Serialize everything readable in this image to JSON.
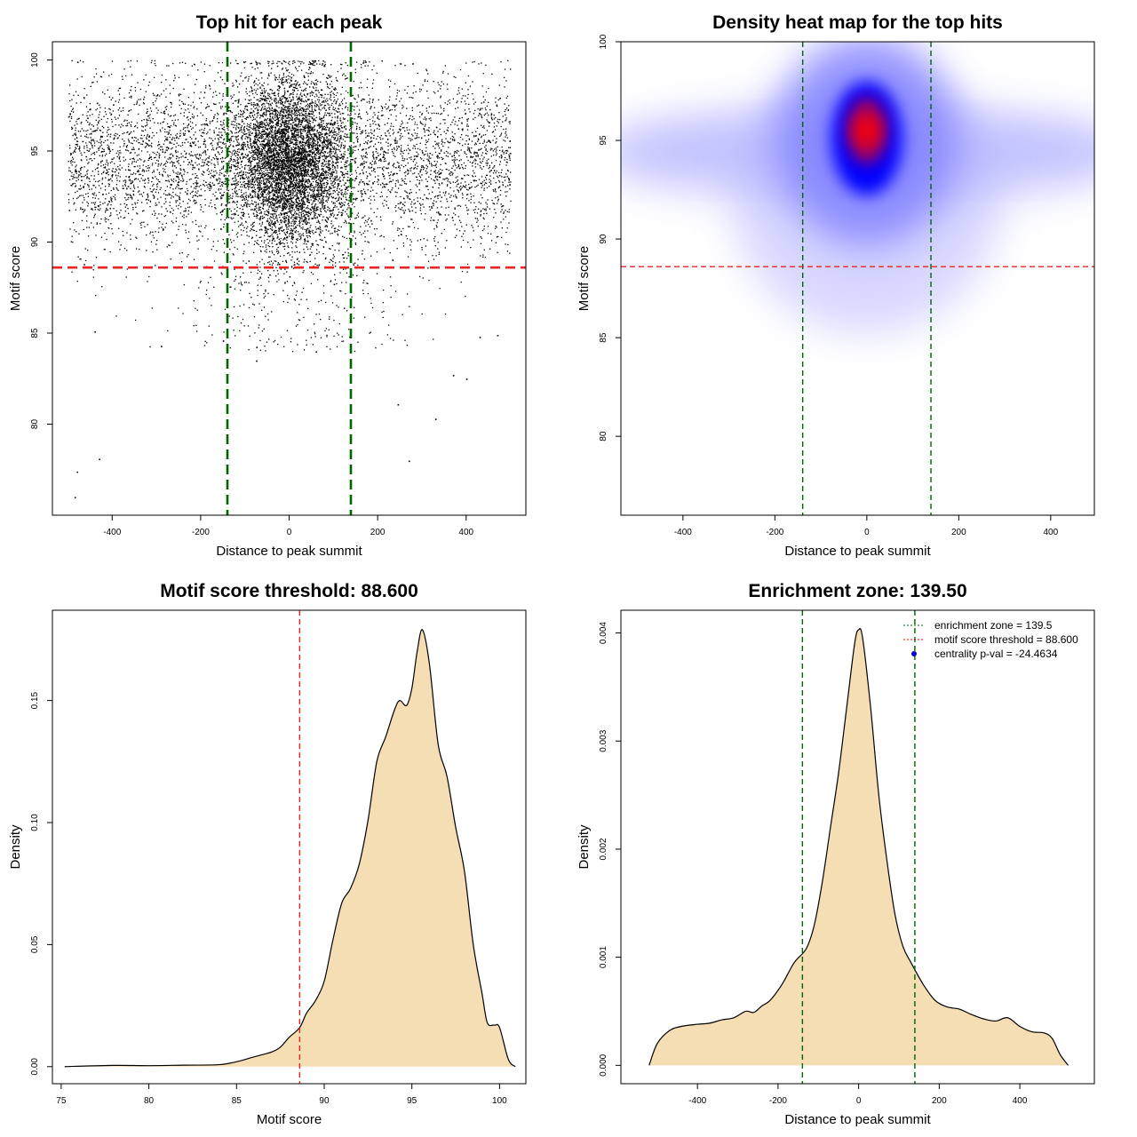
{
  "chart_data": [
    {
      "type": "scatter",
      "title": "Top hit for each peak",
      "xlabel": "Distance to peak summit",
      "ylabel": "Motif score",
      "xlim": [
        -535,
        535
      ],
      "ylim": [
        75,
        101
      ],
      "xticks": [
        -400,
        -200,
        0,
        200,
        400
      ],
      "yticks": [
        80,
        85,
        90,
        95,
        100
      ],
      "enrichment_zone": [
        -139.5,
        139.5
      ],
      "motif_threshold": 88.6,
      "distribution": {
        "description": "dense cloud of top hits centered on peak summit",
        "center_x": 0,
        "center_y": 94.5,
        "x_range": [
          -500,
          500
        ],
        "score_range": [
          75.5,
          100
        ]
      },
      "outliers": [
        {
          "x": -485,
          "y": 76.0
        },
        {
          "x": -480,
          "y": 77.4
        },
        {
          "x": -430,
          "y": 78.1
        },
        {
          "x": 270,
          "y": 78.0
        },
        {
          "x": 330,
          "y": 80.3
        },
        {
          "x": 245,
          "y": 81.1
        },
        {
          "x": 370,
          "y": 82.7
        },
        {
          "x": 400,
          "y": 82.5
        },
        {
          "x": -75,
          "y": 83.5
        },
        {
          "x": -290,
          "y": 84.3
        },
        {
          "x": 430,
          "y": 84.8
        },
        {
          "x": 470,
          "y": 84.9
        },
        {
          "x": -440,
          "y": 85.1
        },
        {
          "x": 60,
          "y": 84.0
        },
        {
          "x": -150,
          "y": 84.6
        }
      ]
    },
    {
      "type": "heatmap",
      "title": "Density heat map for the top hits",
      "xlabel": "Distance to peak summit",
      "ylabel": "Motif score",
      "xlim": [
        -535,
        495
      ],
      "ylim": [
        76,
        100
      ],
      "xticks": [
        -400,
        -200,
        0,
        200,
        400
      ],
      "yticks": [
        80,
        85,
        90,
        95,
        100
      ],
      "enrichment_zone": [
        -139.5,
        139.5
      ],
      "motif_threshold": 88.6,
      "peak_density": {
        "x": 0,
        "y": 95.5
      },
      "colors": [
        "#ffffff",
        "#0000ff",
        "#ff0000"
      ]
    },
    {
      "type": "area",
      "title": "Motif score threshold: 88.600",
      "xlabel": "Motif score",
      "ylabel": "Density",
      "xlim": [
        74.5,
        101.5
      ],
      "ylim": [
        -0.007,
        0.187
      ],
      "xticks": [
        75,
        80,
        85,
        90,
        95,
        100
      ],
      "yticks": [
        0.0,
        0.05,
        0.1,
        0.15
      ],
      "ytick_labels": [
        "0.00",
        "0.05",
        "0.10",
        "0.15"
      ],
      "threshold": 88.6,
      "fill_color": "#f5deb3",
      "x": [
        75.2,
        78,
        80,
        82,
        84,
        85,
        86,
        87,
        87.5,
        88,
        88.6,
        89,
        89.5,
        90,
        90.5,
        91,
        91.5,
        92,
        92.5,
        93,
        93.5,
        94,
        94.3,
        94.7,
        95,
        95.3,
        95.6,
        96,
        96.5,
        97,
        97.5,
        98,
        98.5,
        99,
        99.3,
        99.7,
        100,
        100.5,
        100.9
      ],
      "y": [
        0.0,
        0.0005,
        0.0004,
        0.0006,
        0.0008,
        0.002,
        0.004,
        0.006,
        0.008,
        0.012,
        0.016,
        0.022,
        0.027,
        0.035,
        0.052,
        0.067,
        0.073,
        0.083,
        0.101,
        0.125,
        0.135,
        0.146,
        0.15,
        0.148,
        0.155,
        0.17,
        0.179,
        0.165,
        0.132,
        0.119,
        0.098,
        0.08,
        0.05,
        0.03,
        0.018,
        0.017,
        0.016,
        0.003,
        0.0
      ]
    },
    {
      "type": "area",
      "title": "Enrichment zone: 139.50",
      "xlabel": "Distance to peak summit",
      "ylabel": "Density",
      "xlim": [
        -590,
        585
      ],
      "ylim": [
        -0.00017,
        0.00421
      ],
      "xticks": [
        -400,
        -200,
        0,
        200,
        400
      ],
      "yticks": [
        0.0,
        0.001,
        0.002,
        0.003,
        0.004
      ],
      "ytick_labels": [
        "0.000",
        "0.001",
        "0.002",
        "0.003",
        "0.004"
      ],
      "enrichment_zone": [
        -139.5,
        139.5
      ],
      "fill_color": "#f5deb3",
      "legend": [
        {
          "label": "enrichment zone = 139.5",
          "color": "#006400",
          "kind": "dash"
        },
        {
          "label": "motif score threshold = 88.600",
          "color": "#ff0000",
          "kind": "dash"
        },
        {
          "label": "centrality p-val = -24.4634",
          "color": "#0000cd",
          "kind": "point"
        }
      ],
      "x": [
        -520,
        -500,
        -470,
        -440,
        -400,
        -370,
        -340,
        -310,
        -280,
        -260,
        -240,
        -220,
        -190,
        -160,
        -130,
        -110,
        -90,
        -70,
        -50,
        -30,
        -10,
        0,
        10,
        30,
        50,
        70,
        90,
        110,
        130,
        160,
        190,
        220,
        250,
        280,
        310,
        340,
        370,
        400,
        430,
        460,
        480,
        500,
        520
      ],
      "y": [
        0.0,
        0.0002,
        0.00032,
        0.00036,
        0.00038,
        0.00039,
        0.00042,
        0.00044,
        0.0005,
        0.00049,
        0.00055,
        0.0006,
        0.00075,
        0.00095,
        0.00108,
        0.0013,
        0.0017,
        0.0022,
        0.0027,
        0.0033,
        0.0039,
        0.00403,
        0.00395,
        0.0033,
        0.0025,
        0.0019,
        0.0014,
        0.0011,
        0.00095,
        0.00075,
        0.0006,
        0.00054,
        0.00052,
        0.00047,
        0.00043,
        0.00041,
        0.00044,
        0.00036,
        0.00031,
        0.0003,
        0.00025,
        0.0001,
        0.0
      ]
    }
  ]
}
